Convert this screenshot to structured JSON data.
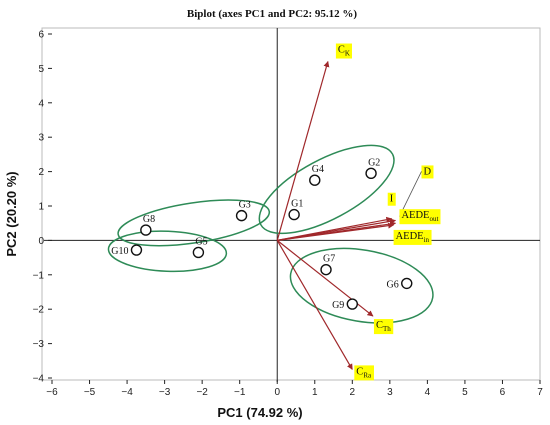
{
  "chart_data": {
    "type": "scatter",
    "title": "Biplot (axes PC1 and PC2: 95.12 %)",
    "xlabel": "PC1 (74.92 %)",
    "ylabel": "PC2 (20.20 %)",
    "xlim": [
      -6,
      7
    ],
    "ylim": [
      -4,
      6
    ],
    "xticks": [
      "−6",
      "−5",
      "−4",
      "−3",
      "−2",
      "−1",
      "0",
      "1",
      "2",
      "3",
      "4",
      "5",
      "6",
      "7"
    ],
    "yticks": [
      "6",
      "5",
      "4",
      "3",
      "2",
      "1",
      "0",
      "−1",
      "−2",
      "−3",
      "−4"
    ],
    "grid": false,
    "observations": [
      {
        "label": "G1",
        "x": 0.45,
        "y": 0.75
      },
      {
        "label": "G2",
        "x": 2.5,
        "y": 1.95
      },
      {
        "label": "G3",
        "x": -0.95,
        "y": 0.72
      },
      {
        "label": "G4",
        "x": 1.0,
        "y": 1.75
      },
      {
        "label": "G5",
        "x": -2.1,
        "y": -0.35
      },
      {
        "label": "G6",
        "x": 3.45,
        "y": -1.25
      },
      {
        "label": "G7",
        "x": 1.3,
        "y": -0.85
      },
      {
        "label": "G8",
        "x": -3.5,
        "y": 0.3
      },
      {
        "label": "G9",
        "x": 2.0,
        "y": -1.85
      },
      {
        "label": "G10",
        "x": -3.75,
        "y": -0.28
      }
    ],
    "variables": [
      {
        "label": "C",
        "sub": "K",
        "x": 1.35,
        "y": 5.2
      },
      {
        "label": "I",
        "sub": "",
        "x": 3.05,
        "y": 0.63
      },
      {
        "label": "D",
        "sub": "",
        "x": 3.15,
        "y": 0.58
      },
      {
        "label": "AEDE",
        "sub": "out",
        "x": 3.15,
        "y": 0.5
      },
      {
        "label": "AEDE",
        "sub": "in",
        "x": 3.1,
        "y": 0.45
      },
      {
        "label": "C",
        "sub": "Th",
        "x": 2.55,
        "y": -2.2
      },
      {
        "label": "C",
        "sub": "Ra",
        "x": 2.0,
        "y": -3.75
      }
    ],
    "groups": [
      {
        "members": [
          "G1",
          "G2",
          "G4"
        ]
      },
      {
        "members": [
          "G3",
          "G8"
        ]
      },
      {
        "members": [
          "G5",
          "G10"
        ]
      },
      {
        "members": [
          "G6",
          "G7",
          "G9"
        ]
      }
    ],
    "colors": {
      "vector": "#a0282b",
      "ellipse": "#2e8b57",
      "highlight": "#ffff00"
    }
  }
}
